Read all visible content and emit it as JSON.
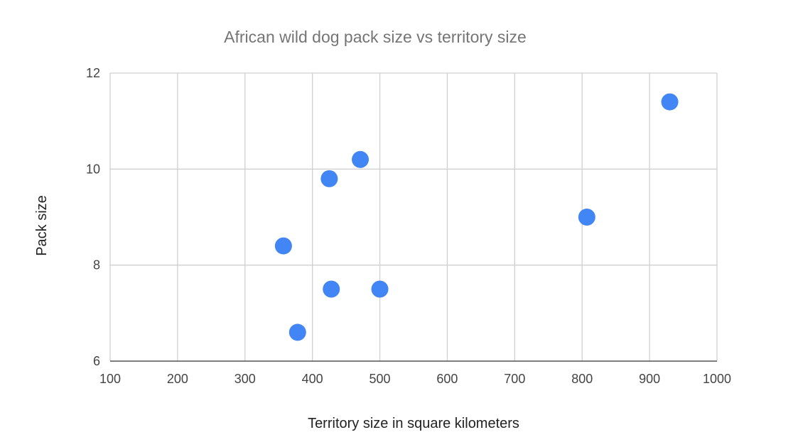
{
  "chart_data": {
    "type": "scatter",
    "title": "African wild dog pack size vs territory size",
    "xlabel": "Territory size in square kilometers",
    "ylabel": "Pack size",
    "xlim": [
      100,
      1000
    ],
    "ylim": [
      6,
      12
    ],
    "x_ticks": [
      "100",
      "200",
      "300",
      "400",
      "500",
      "600",
      "700",
      "800",
      "900",
      "1000"
    ],
    "y_ticks": [
      "6",
      "8",
      "10",
      "12"
    ],
    "grid": true,
    "legend": "none",
    "series": [
      {
        "color": "#4285f4",
        "points": [
          {
            "x": 357,
            "y": 8.4
          },
          {
            "x": 378,
            "y": 6.6
          },
          {
            "x": 425,
            "y": 9.8
          },
          {
            "x": 428,
            "y": 7.5
          },
          {
            "x": 471,
            "y": 10.2
          },
          {
            "x": 500,
            "y": 7.5
          },
          {
            "x": 807,
            "y": 9.0
          },
          {
            "x": 930,
            "y": 11.4
          }
        ]
      }
    ]
  }
}
